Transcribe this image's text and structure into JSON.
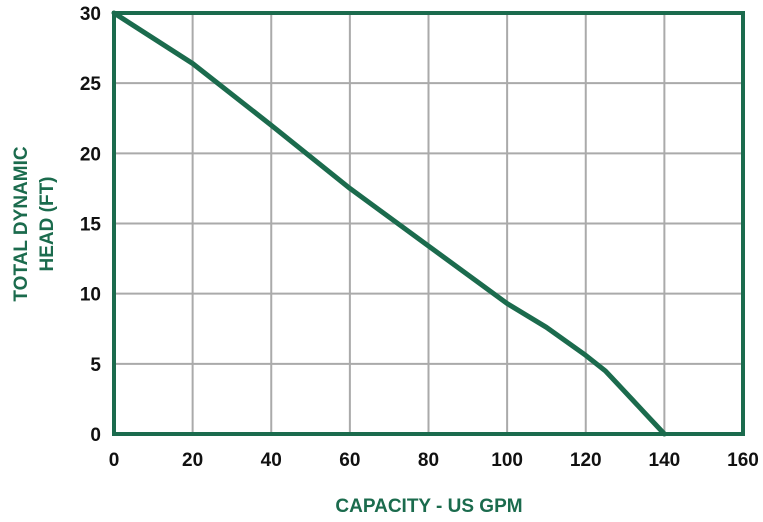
{
  "chart_data": {
    "type": "line",
    "title": "",
    "xlabel": "CAPACITY - US GPM",
    "ylabel_lines": [
      "TOTAL DYNAMIC",
      "HEAD (FT)"
    ],
    "xlim": [
      0,
      160
    ],
    "ylim": [
      0,
      30
    ],
    "x_ticks": [
      "0",
      "20",
      "40",
      "60",
      "80",
      "100",
      "120",
      "140",
      "160"
    ],
    "y_ticks": [
      "0",
      "5",
      "10",
      "15",
      "20",
      "25",
      "30"
    ],
    "grid": true,
    "legend": "none",
    "series": [
      {
        "x": [
          0,
          20,
          40,
          60,
          80,
          100,
          110,
          120,
          125,
          130,
          135,
          140
        ],
        "y": [
          30,
          26.4,
          22,
          17.5,
          13.4,
          9.3,
          7.6,
          5.6,
          4.5,
          3,
          1.5,
          0
        ]
      }
    ]
  },
  "colors": {
    "curve": "#1b6b4d",
    "frame": "#1b6b4d",
    "grid": "#aaaaaa",
    "axis_title": "#1b6b4d",
    "tick_text": "#111111"
  }
}
